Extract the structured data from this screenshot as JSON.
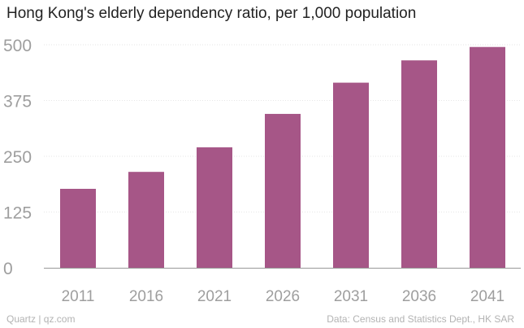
{
  "chart_data": {
    "type": "bar",
    "title": "Hong Kong's elderly dependency ratio, per 1,000 population",
    "xlabel": "",
    "ylabel": "",
    "categories": [
      "2011",
      "2016",
      "2021",
      "2026",
      "2031",
      "2036",
      "2041"
    ],
    "values": [
      177,
      215,
      270,
      345,
      415,
      465,
      495
    ],
    "ylim": [
      0,
      500
    ],
    "yticks": [
      0,
      125,
      250,
      375,
      500
    ],
    "grid": true,
    "colors": {
      "bar": "#a65687",
      "grid": "#e6e6e6",
      "baseline": "#999999",
      "tick_text": "#9e9e9e"
    }
  },
  "footer": {
    "credit": "Quartz | qz.com",
    "source": "Data: Census and Statistics Dept., HK SAR"
  }
}
